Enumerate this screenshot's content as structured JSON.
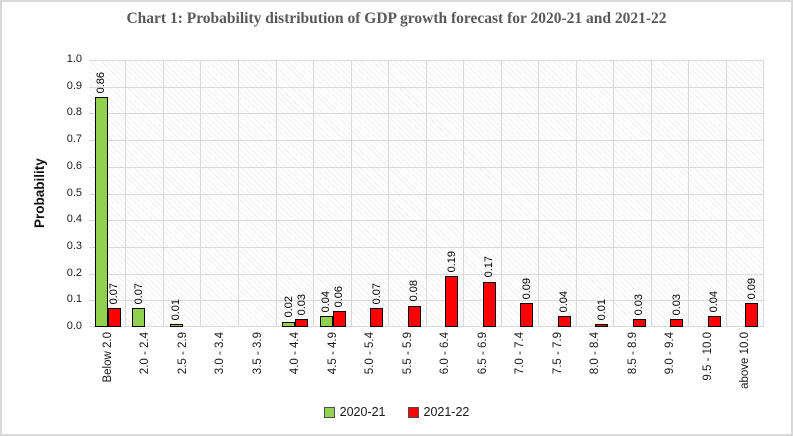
{
  "title": "Chart 1: Probability distribution of  GDP growth forecast for 2020-21 and 2021-22",
  "chart_data": {
    "type": "bar",
    "title": "Chart 1: Probability distribution of GDP growth forecast for 2020-21 and 2021-22",
    "xlabel": "",
    "ylabel": "Probability",
    "ylim": [
      0.0,
      1.0
    ],
    "ytick_step": 0.1,
    "yticks": [
      "1.0",
      "0.9",
      "0.8",
      "0.7",
      "0.6",
      "0.5",
      "0.4",
      "0.3",
      "0.2",
      "0.1",
      "0.0"
    ],
    "grid": true,
    "legend_position": "bottom",
    "plot_background": "light-diagonal-hatch",
    "bar_border_color": "#000000",
    "categories": [
      "Below 2.0",
      "2.0 - 2.4",
      "2.5 - 2.9",
      "3.0 - 3.4",
      "3.5 - 3.9",
      "4.0 - 4.4",
      "4.5 - 4.9",
      "5.0 - 5.4",
      "5.5 - 5.9",
      "6.0 - 6.4",
      "6.5 - 6.9",
      "7.0 - 7.4",
      "7.5 - 7.9",
      "8.0 - 8.4",
      "8.5 - 8.9",
      "9.0 - 9.4",
      "9.5 - 10.0",
      "above 10.0"
    ],
    "series": [
      {
        "name": "2020-21",
        "color": "#92D050",
        "values": [
          0.86,
          0.07,
          0.01,
          null,
          null,
          0.02,
          0.04,
          null,
          null,
          null,
          null,
          null,
          null,
          null,
          null,
          null,
          null,
          null
        ]
      },
      {
        "name": "2021-22",
        "color": "#FF0000",
        "values": [
          0.07,
          null,
          null,
          null,
          null,
          0.03,
          0.06,
          0.07,
          0.08,
          0.19,
          0.17,
          0.09,
          0.04,
          0.01,
          0.03,
          0.03,
          0.04,
          0.09
        ]
      }
    ],
    "data_label_format": "0.00",
    "data_label_rotation": "vertical-bottom-to-top"
  }
}
